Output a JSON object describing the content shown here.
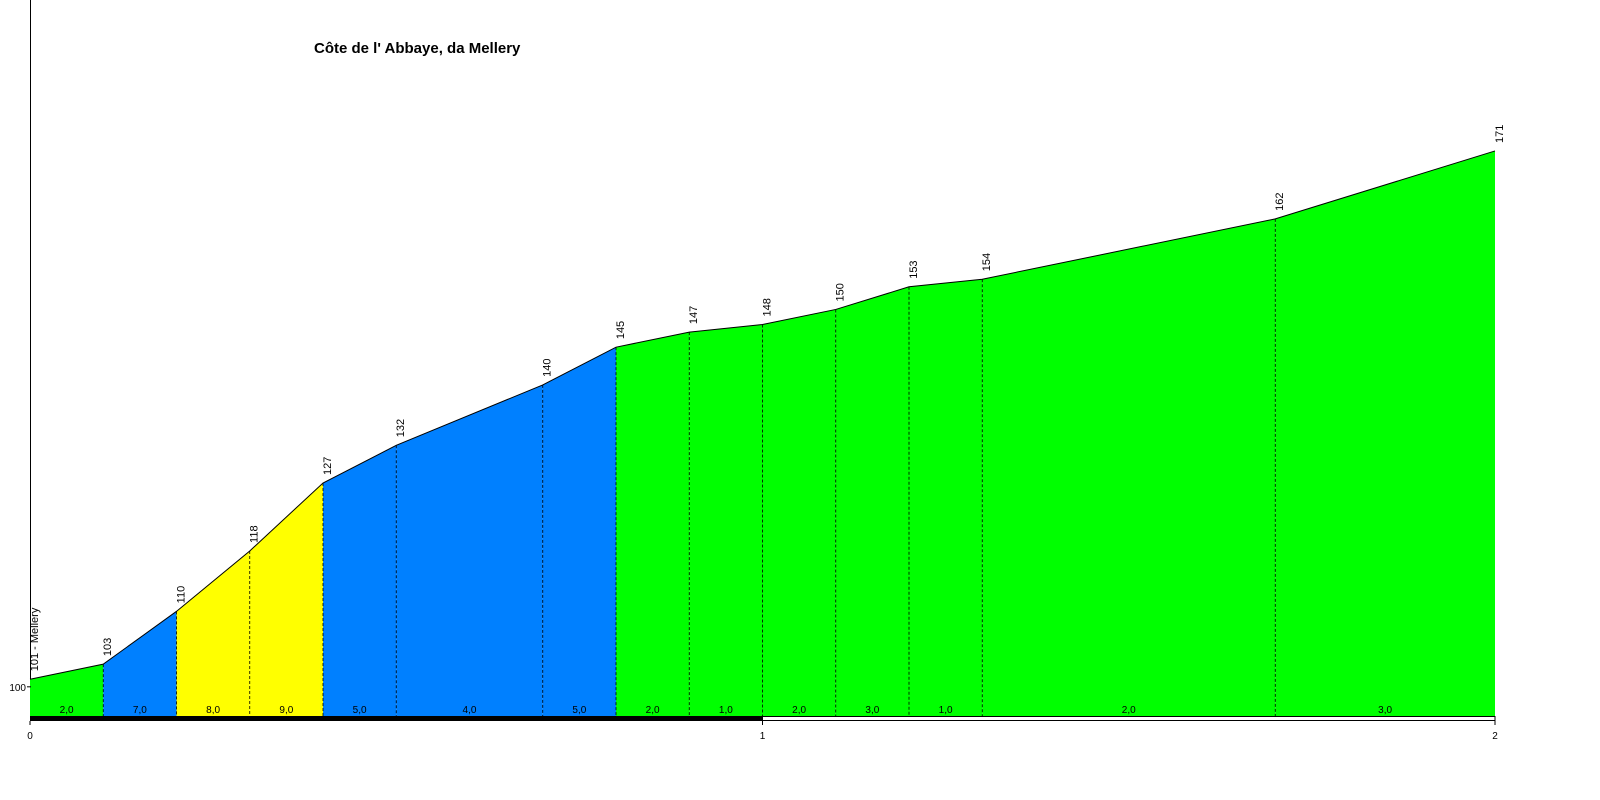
{
  "chart_data": {
    "type": "profile",
    "title": "Côte de l' Abbaye, da Mellery",
    "x": [
      0,
      0.1,
      0.2,
      0.3,
      0.4,
      0.5,
      0.7,
      0.8,
      0.9,
      1.0,
      1.1,
      1.2,
      1.3,
      1.7,
      2.0
    ],
    "values": [
      101,
      103,
      110,
      118,
      127,
      132,
      140,
      145,
      147,
      148,
      150,
      153,
      154,
      162,
      171
    ],
    "value_labels": [
      "101 - Mellery",
      "103",
      "110",
      "118",
      "127",
      "132",
      "140",
      "145",
      "147",
      "148",
      "150",
      "153",
      "154",
      "162",
      "171"
    ],
    "gradients": {
      "values": [
        2,
        7,
        8,
        9,
        5,
        4,
        5,
        2,
        1,
        2,
        3,
        1,
        2,
        3
      ],
      "value_labels": [
        "2,0",
        "7,0",
        "8,0",
        "9,0",
        "5,0",
        "4,0",
        "5,0",
        "2,0",
        "1,0",
        "2,0",
        "3,0",
        "1,0",
        "2,0",
        "3,0"
      ],
      "colors": [
        "#00ff00",
        "#0080ff",
        "#ffff00",
        "#ffff00",
        "#0080ff",
        "#0080ff",
        "#0080ff",
        "#00ff00",
        "#00ff00",
        "#00ff00",
        "#00ff00",
        "#00ff00",
        "#00ff00",
        "#00ff00"
      ]
    },
    "xlim": [
      0,
      2
    ],
    "xticks": [
      0,
      1,
      2
    ],
    "ylim": [
      96,
      191
    ],
    "yticks": [
      100
    ]
  }
}
